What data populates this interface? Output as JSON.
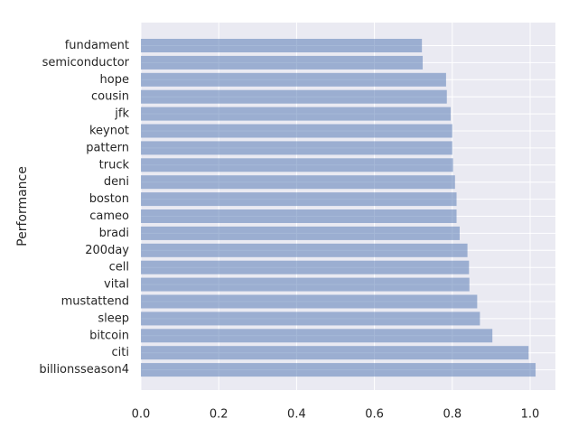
{
  "chart_data": {
    "type": "bar",
    "orientation": "horizontal",
    "title": "",
    "xlabel": "",
    "ylabel": "Performance",
    "xlim": [
      0,
      1.065
    ],
    "x_ticks": [
      "0.0",
      "0.2",
      "0.4",
      "0.6",
      "0.8",
      "1.0"
    ],
    "x_tick_values": [
      0.0,
      0.2,
      0.4,
      0.6,
      0.8,
      1.0
    ],
    "grid": true,
    "style": "seaborn-darkgrid",
    "categories": [
      "fundament",
      "semiconductor",
      "hope",
      "cousin",
      "jfk",
      "keynot",
      "pattern",
      "truck",
      "deni",
      "boston",
      "cameo",
      "bradi",
      "200day",
      "cell",
      "vital",
      "mustattend",
      "sleep",
      "bitcoin",
      "citi",
      "billionsseason4"
    ],
    "values": [
      0.722,
      0.724,
      0.784,
      0.786,
      0.796,
      0.8,
      0.8,
      0.802,
      0.807,
      0.811,
      0.811,
      0.819,
      0.839,
      0.843,
      0.844,
      0.864,
      0.871,
      0.903,
      0.996,
      1.014
    ],
    "colors": {
      "bar": "#4c72b0",
      "bar_opacity": 0.5,
      "plot_bg": "#eaeaf2",
      "grid": "#ffffff",
      "text": "#262626"
    }
  }
}
